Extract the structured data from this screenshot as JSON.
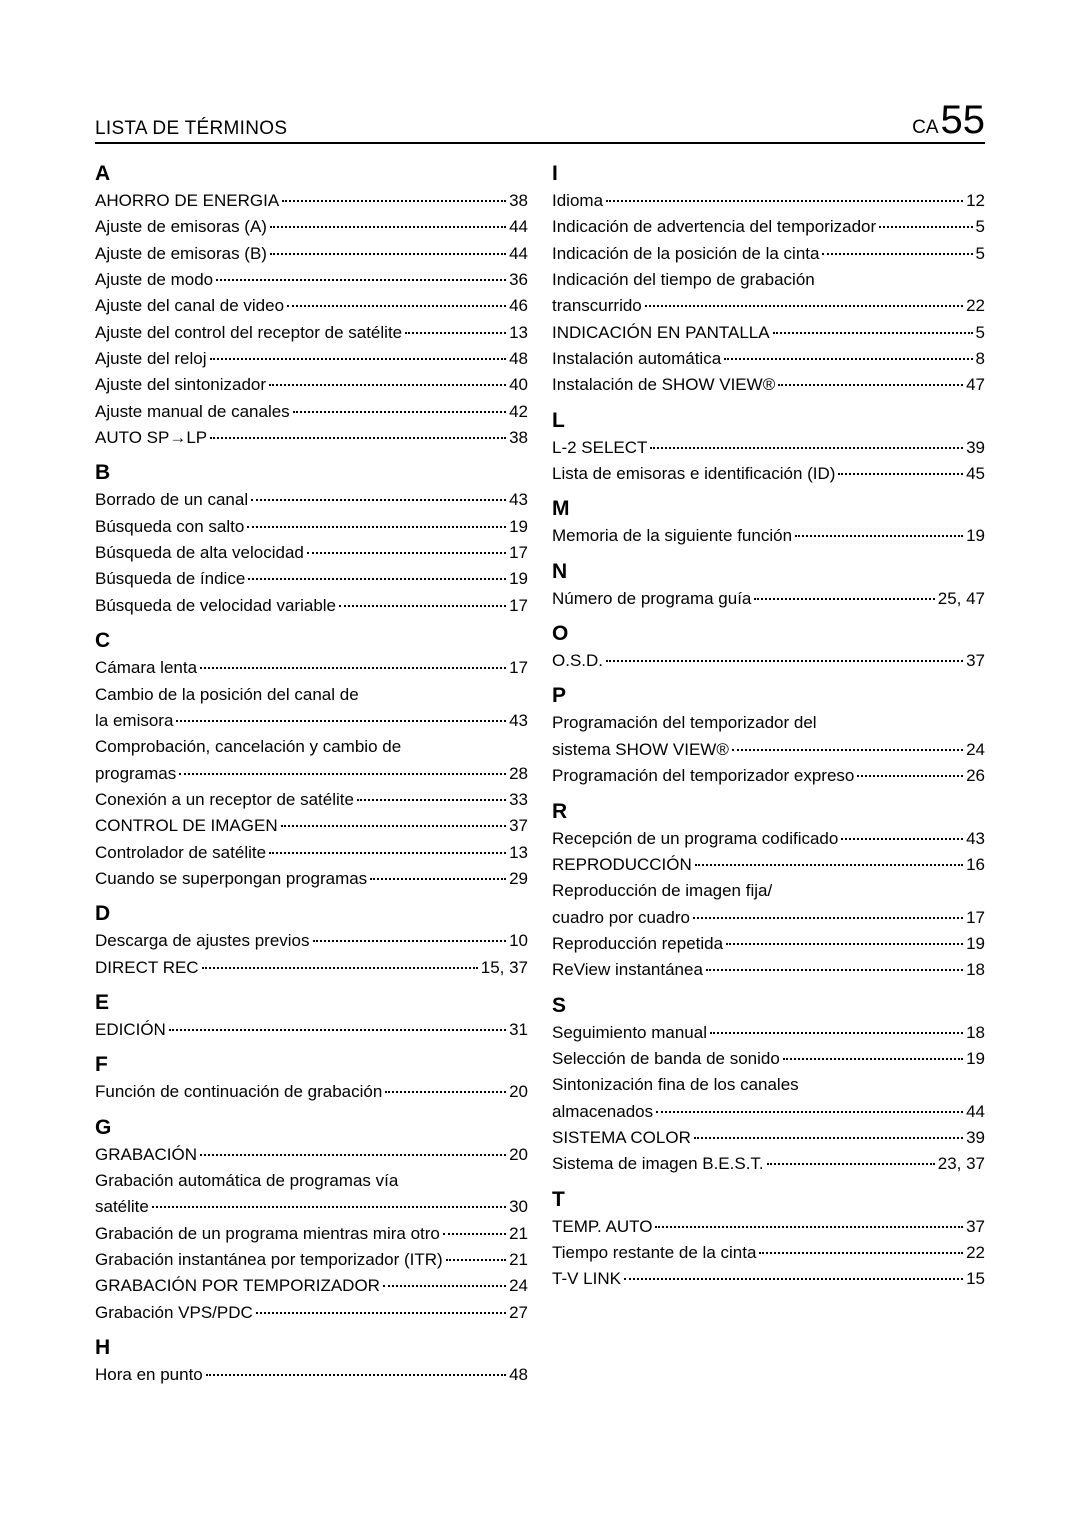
{
  "header": {
    "title": "LISTA DE TÉRMINOS",
    "page_prefix": "CA",
    "page_number": "55"
  },
  "left": [
    {
      "type": "letter",
      "text": "A"
    },
    {
      "type": "entry",
      "label": "AHORRO DE ENERGIA",
      "page": "38"
    },
    {
      "type": "entry",
      "label": "Ajuste de emisoras (A)",
      "page": "44"
    },
    {
      "type": "entry",
      "label": "Ajuste de emisoras (B)",
      "page": "44"
    },
    {
      "type": "entry",
      "label": "Ajuste de modo",
      "page": "36"
    },
    {
      "type": "entry",
      "label": "Ajuste del canal de video",
      "page": "46"
    },
    {
      "type": "entry",
      "label": "Ajuste del control del receptor de satélite",
      "page": "13"
    },
    {
      "type": "entry",
      "label": "Ajuste del reloj",
      "page": "48"
    },
    {
      "type": "entry",
      "label": "Ajuste del sintonizador",
      "page": "40"
    },
    {
      "type": "entry",
      "label": "Ajuste manual de canales",
      "page": "42"
    },
    {
      "type": "entry",
      "label": "AUTO SP→LP",
      "page": "38"
    },
    {
      "type": "letter",
      "text": "B"
    },
    {
      "type": "entry",
      "label": "Borrado de un canal",
      "page": "43"
    },
    {
      "type": "entry",
      "label": "Búsqueda con salto",
      "page": "19"
    },
    {
      "type": "entry",
      "label": "Búsqueda de alta velocidad",
      "page": "17"
    },
    {
      "type": "entry",
      "label": "Búsqueda de índice",
      "page": "19"
    },
    {
      "type": "entry",
      "label": "Búsqueda de velocidad variable",
      "page": "17"
    },
    {
      "type": "letter",
      "text": "C"
    },
    {
      "type": "entry",
      "label": "Cámara lenta",
      "page": "17"
    },
    {
      "type": "cont",
      "label": "Cambio de la posición del canal de"
    },
    {
      "type": "entry",
      "label": "la emisora",
      "page": "43"
    },
    {
      "type": "cont",
      "label": "Comprobación, cancelación y cambio de"
    },
    {
      "type": "entry",
      "label": "programas",
      "page": "28"
    },
    {
      "type": "entry",
      "label": "Conexión a un receptor de satélite",
      "page": "33"
    },
    {
      "type": "entry",
      "label": "CONTROL DE IMAGEN",
      "page": "37"
    },
    {
      "type": "entry",
      "label": "Controlador de satélite",
      "page": "13"
    },
    {
      "type": "entry",
      "label": "Cuando se superpongan programas",
      "page": "29"
    },
    {
      "type": "letter",
      "text": "D"
    },
    {
      "type": "entry",
      "label": "Descarga de ajustes previos",
      "page": "10"
    },
    {
      "type": "entry",
      "label": "DIRECT REC",
      "page": "15, 37"
    },
    {
      "type": "letter",
      "text": "E"
    },
    {
      "type": "entry",
      "label": "EDICIÓN",
      "page": "31"
    },
    {
      "type": "letter",
      "text": "F"
    },
    {
      "type": "entry",
      "label": "Función de continuación de grabación",
      "page": "20"
    },
    {
      "type": "letter",
      "text": "G"
    },
    {
      "type": "entry",
      "label": "GRABACIÓN",
      "page": "20"
    },
    {
      "type": "cont",
      "label": "Grabación automática de programas vía"
    },
    {
      "type": "entry",
      "label": "satélite",
      "page": "30"
    },
    {
      "type": "entry",
      "label": "Grabación de un programa mientras mira otro",
      "page": "21"
    },
    {
      "type": "entry",
      "label": "Grabación instantánea por temporizador (ITR)",
      "page": "21"
    },
    {
      "type": "entry",
      "label": "GRABACIÓN POR TEMPORIZADOR",
      "page": "24"
    },
    {
      "type": "entry",
      "label": "Grabación VPS/PDC",
      "page": "27"
    },
    {
      "type": "letter",
      "text": "H"
    },
    {
      "type": "entry",
      "label": "Hora en punto",
      "page": "48"
    }
  ],
  "right": [
    {
      "type": "letter",
      "text": "I"
    },
    {
      "type": "entry",
      "label": "Idioma",
      "page": "12"
    },
    {
      "type": "entry",
      "label": "Indicación de advertencia del temporizador",
      "page": "5"
    },
    {
      "type": "entry",
      "label": "Indicación de la posición de la cinta",
      "page": "5"
    },
    {
      "type": "cont",
      "label": "Indicación del tiempo de grabación"
    },
    {
      "type": "entry",
      "label": "transcurrido",
      "page": "22"
    },
    {
      "type": "entry",
      "label": "INDICACIÓN EN PANTALLA",
      "page": "5"
    },
    {
      "type": "entry",
      "label": "Instalación automática",
      "page": "8"
    },
    {
      "type": "entry",
      "label": "Instalación de S<span class=\"small-caps\">HOW</span> V<span class=\"small-caps\">IEW</span>®",
      "page": "47",
      "html": true
    },
    {
      "type": "letter",
      "text": "L"
    },
    {
      "type": "entry",
      "label": "L-2 SELECT",
      "page": "39"
    },
    {
      "type": "entry",
      "label": "Lista de emisoras e identificación (ID)",
      "page": "45"
    },
    {
      "type": "letter",
      "text": "M"
    },
    {
      "type": "entry",
      "label": "Memoria de la siguiente función",
      "page": "19"
    },
    {
      "type": "letter",
      "text": "N"
    },
    {
      "type": "entry",
      "label": "Número de programa guía",
      "page": "25, 47"
    },
    {
      "type": "letter",
      "text": "O"
    },
    {
      "type": "entry",
      "label": "O.S.D.",
      "page": "37"
    },
    {
      "type": "letter",
      "text": "P"
    },
    {
      "type": "cont",
      "label": "Programación del temporizador del"
    },
    {
      "type": "entry",
      "label": "sistema S<span class=\"small-caps\">HOW</span> V<span class=\"small-caps\">IEW</span>®",
      "page": "24",
      "html": true
    },
    {
      "type": "entry",
      "label": "Programación del temporizador expreso",
      "page": "26"
    },
    {
      "type": "letter",
      "text": "R"
    },
    {
      "type": "entry",
      "label": "Recepción de un programa codificado",
      "page": "43"
    },
    {
      "type": "entry",
      "label": "REPRODUCCIÓN",
      "page": "16"
    },
    {
      "type": "cont",
      "label": "Reproducción de imagen fija/"
    },
    {
      "type": "entry",
      "label": "cuadro por cuadro",
      "page": "17"
    },
    {
      "type": "entry",
      "label": "Reproducción repetida",
      "page": "19"
    },
    {
      "type": "entry",
      "label": "ReView instantánea",
      "page": "18"
    },
    {
      "type": "letter",
      "text": "S"
    },
    {
      "type": "entry",
      "label": "Seguimiento manual",
      "page": "18"
    },
    {
      "type": "entry",
      "label": "Selección de banda de sonido",
      "page": "19"
    },
    {
      "type": "cont",
      "label": "Sintonización fina de los canales"
    },
    {
      "type": "entry",
      "label": "almacenados",
      "page": "44"
    },
    {
      "type": "entry",
      "label": "SISTEMA COLOR",
      "page": "39"
    },
    {
      "type": "entry",
      "label": "Sistema de imagen B.E.S.T.",
      "page": "23, 37"
    },
    {
      "type": "letter",
      "text": "T"
    },
    {
      "type": "entry",
      "label": "TEMP. AUTO",
      "page": "37"
    },
    {
      "type": "entry",
      "label": "Tiempo restante de la cinta",
      "page": "22"
    },
    {
      "type": "entry",
      "label": "T-V LINK",
      "page": "15"
    }
  ]
}
